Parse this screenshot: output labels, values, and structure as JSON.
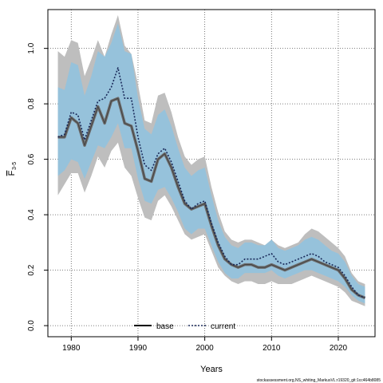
{
  "chart_data": {
    "type": "line",
    "xlabel": "Years",
    "ylabel_main": "F",
    "ylabel_sub": "3-5",
    "xlim": [
      1976.5,
      2025.5
    ],
    "ylim": [
      -0.04,
      1.14
    ],
    "xticks": [
      1980,
      1990,
      2000,
      2010,
      2020
    ],
    "yticks": [
      0.0,
      0.2,
      0.4,
      0.6,
      0.8,
      1.0
    ],
    "ytick_labels": [
      "0.0",
      "0.2",
      "0.4",
      "0.6",
      "0.8",
      "1.0"
    ],
    "grid": true,
    "legend_position": "bottom-center",
    "x": [
      1978,
      1979,
      1980,
      1981,
      1982,
      1983,
      1984,
      1985,
      1986,
      1987,
      1988,
      1989,
      1990,
      1991,
      1992,
      1993,
      1994,
      1995,
      1996,
      1997,
      1998,
      1999,
      2000,
      2001,
      2002,
      2003,
      2004,
      2005,
      2006,
      2007,
      2008,
      2009,
      2010,
      2011,
      2012,
      2013,
      2014,
      2015,
      2016,
      2017,
      2018,
      2019,
      2020,
      2021,
      2022,
      2023,
      2024
    ],
    "series": [
      {
        "name": "base",
        "color": "#000000",
        "dash": "solid",
        "values": [
          0.68,
          0.68,
          0.75,
          0.73,
          0.65,
          0.72,
          0.79,
          0.73,
          0.81,
          0.82,
          0.73,
          0.72,
          0.63,
          0.53,
          0.52,
          0.6,
          0.62,
          0.57,
          0.5,
          0.44,
          0.42,
          0.43,
          0.44,
          0.36,
          0.29,
          0.24,
          0.22,
          0.21,
          0.22,
          0.22,
          0.21,
          0.21,
          0.22,
          0.21,
          0.2,
          0.21,
          0.22,
          0.23,
          0.24,
          0.23,
          0.22,
          0.21,
          0.2,
          0.17,
          0.13,
          0.11,
          0.1
        ],
        "band_low": [
          0.47,
          0.51,
          0.55,
          0.55,
          0.48,
          0.54,
          0.61,
          0.57,
          0.63,
          0.66,
          0.57,
          0.54,
          0.46,
          0.39,
          0.38,
          0.45,
          0.47,
          0.43,
          0.38,
          0.33,
          0.31,
          0.32,
          0.33,
          0.27,
          0.21,
          0.18,
          0.16,
          0.15,
          0.16,
          0.16,
          0.15,
          0.15,
          0.16,
          0.15,
          0.15,
          0.15,
          0.16,
          0.17,
          0.18,
          0.17,
          0.16,
          0.15,
          0.14,
          0.12,
          0.09,
          0.08,
          0.07
        ],
        "band_high": [
          0.99,
          0.97,
          1.03,
          1.02,
          0.9,
          0.96,
          1.03,
          0.97,
          1.05,
          1.12,
          1.01,
          0.98,
          0.87,
          0.74,
          0.73,
          0.83,
          0.84,
          0.77,
          0.68,
          0.61,
          0.58,
          0.6,
          0.61,
          0.5,
          0.41,
          0.34,
          0.31,
          0.3,
          0.31,
          0.31,
          0.3,
          0.29,
          0.31,
          0.29,
          0.28,
          0.29,
          0.3,
          0.33,
          0.35,
          0.34,
          0.32,
          0.3,
          0.28,
          0.25,
          0.19,
          0.16,
          0.15
        ],
        "band_color": "#bebebe"
      },
      {
        "name": "current",
        "color": "#1a2a5a",
        "dash": "dotted",
        "values": [
          0.68,
          0.69,
          0.77,
          0.76,
          0.67,
          0.74,
          0.81,
          0.82,
          0.86,
          0.93,
          0.82,
          0.82,
          0.68,
          0.58,
          0.56,
          0.62,
          0.64,
          0.59,
          0.52,
          0.45,
          0.42,
          0.44,
          0.45,
          0.37,
          0.3,
          0.25,
          0.22,
          0.22,
          0.24,
          0.24,
          0.24,
          0.25,
          0.26,
          0.23,
          0.22,
          0.23,
          0.24,
          0.25,
          0.26,
          0.25,
          0.23,
          0.22,
          0.21,
          0.18,
          0.14,
          0.11,
          0.1
        ],
        "band_low": [
          0.54,
          0.56,
          0.6,
          0.59,
          0.53,
          0.59,
          0.65,
          0.64,
          0.68,
          0.73,
          0.64,
          0.64,
          0.53,
          0.45,
          0.44,
          0.49,
          0.5,
          0.46,
          0.41,
          0.35,
          0.33,
          0.35,
          0.35,
          0.29,
          0.23,
          0.19,
          0.17,
          0.17,
          0.19,
          0.19,
          0.19,
          0.19,
          0.2,
          0.18,
          0.17,
          0.18,
          0.19,
          0.2,
          0.2,
          0.19,
          0.18,
          0.17,
          0.16,
          0.14,
          0.11,
          0.09,
          0.08
        ],
        "band_high": [
          0.86,
          0.85,
          0.95,
          0.94,
          0.83,
          0.9,
          0.99,
          0.97,
          1.02,
          1.09,
          0.99,
          0.98,
          0.82,
          0.71,
          0.69,
          0.76,
          0.78,
          0.72,
          0.64,
          0.57,
          0.54,
          0.56,
          0.57,
          0.47,
          0.38,
          0.32,
          0.29,
          0.28,
          0.3,
          0.3,
          0.29,
          0.29,
          0.31,
          0.28,
          0.27,
          0.28,
          0.29,
          0.31,
          0.32,
          0.31,
          0.29,
          0.27,
          0.26,
          0.23,
          0.18,
          0.15,
          0.14
        ],
        "band_color": "#8fc3e0"
      }
    ]
  },
  "footer_text": "stockassessment.org,NS_whiting_MarkusVL:r19320_git:1cc464b8085"
}
